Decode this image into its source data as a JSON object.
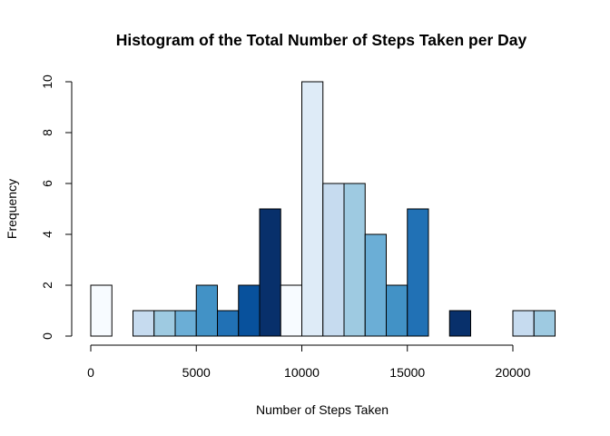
{
  "chart_data": {
    "type": "bar",
    "title": "Histogram of the Total Number of Steps Taken per Day",
    "xlabel": "Number of Steps Taken",
    "ylabel": "Frequency",
    "bin_width": 1000,
    "bin_starts": [
      0,
      1000,
      2000,
      3000,
      4000,
      5000,
      6000,
      7000,
      8000,
      9000,
      10000,
      11000,
      12000,
      13000,
      14000,
      15000,
      16000,
      17000,
      18000,
      19000,
      20000,
      21000
    ],
    "values": [
      2,
      0,
      1,
      1,
      1,
      2,
      1,
      2,
      5,
      2,
      10,
      6,
      6,
      4,
      2,
      5,
      0,
      1,
      0,
      0,
      1,
      1
    ],
    "colors": [
      "#F7FBFF",
      "#DEEBF7",
      "#C6DBEF",
      "#9ECAE1",
      "#6BAED6",
      "#4292C6",
      "#2171B5",
      "#08519C",
      "#08306B",
      "#F7FBFF",
      "#DEEBF7",
      "#C6DBEF",
      "#9ECAE1",
      "#6BAED6",
      "#4292C6",
      "#2171B5",
      "#08519C",
      "#08306B",
      "#F7FBFF",
      "#DEEBF7",
      "#C6DBEF",
      "#9ECAE1"
    ],
    "xlim": [
      0,
      22000
    ],
    "ylim": [
      0,
      10
    ],
    "x_ticks": [
      0,
      5000,
      10000,
      15000,
      20000
    ],
    "x_tick_labels": [
      "0",
      "5000",
      "10000",
      "15000",
      "20000"
    ],
    "y_ticks": [
      0,
      2,
      4,
      6,
      8,
      10
    ],
    "y_tick_labels": [
      "0",
      "2",
      "4",
      "6",
      "8",
      "10"
    ],
    "grid": false,
    "legend": "none"
  }
}
